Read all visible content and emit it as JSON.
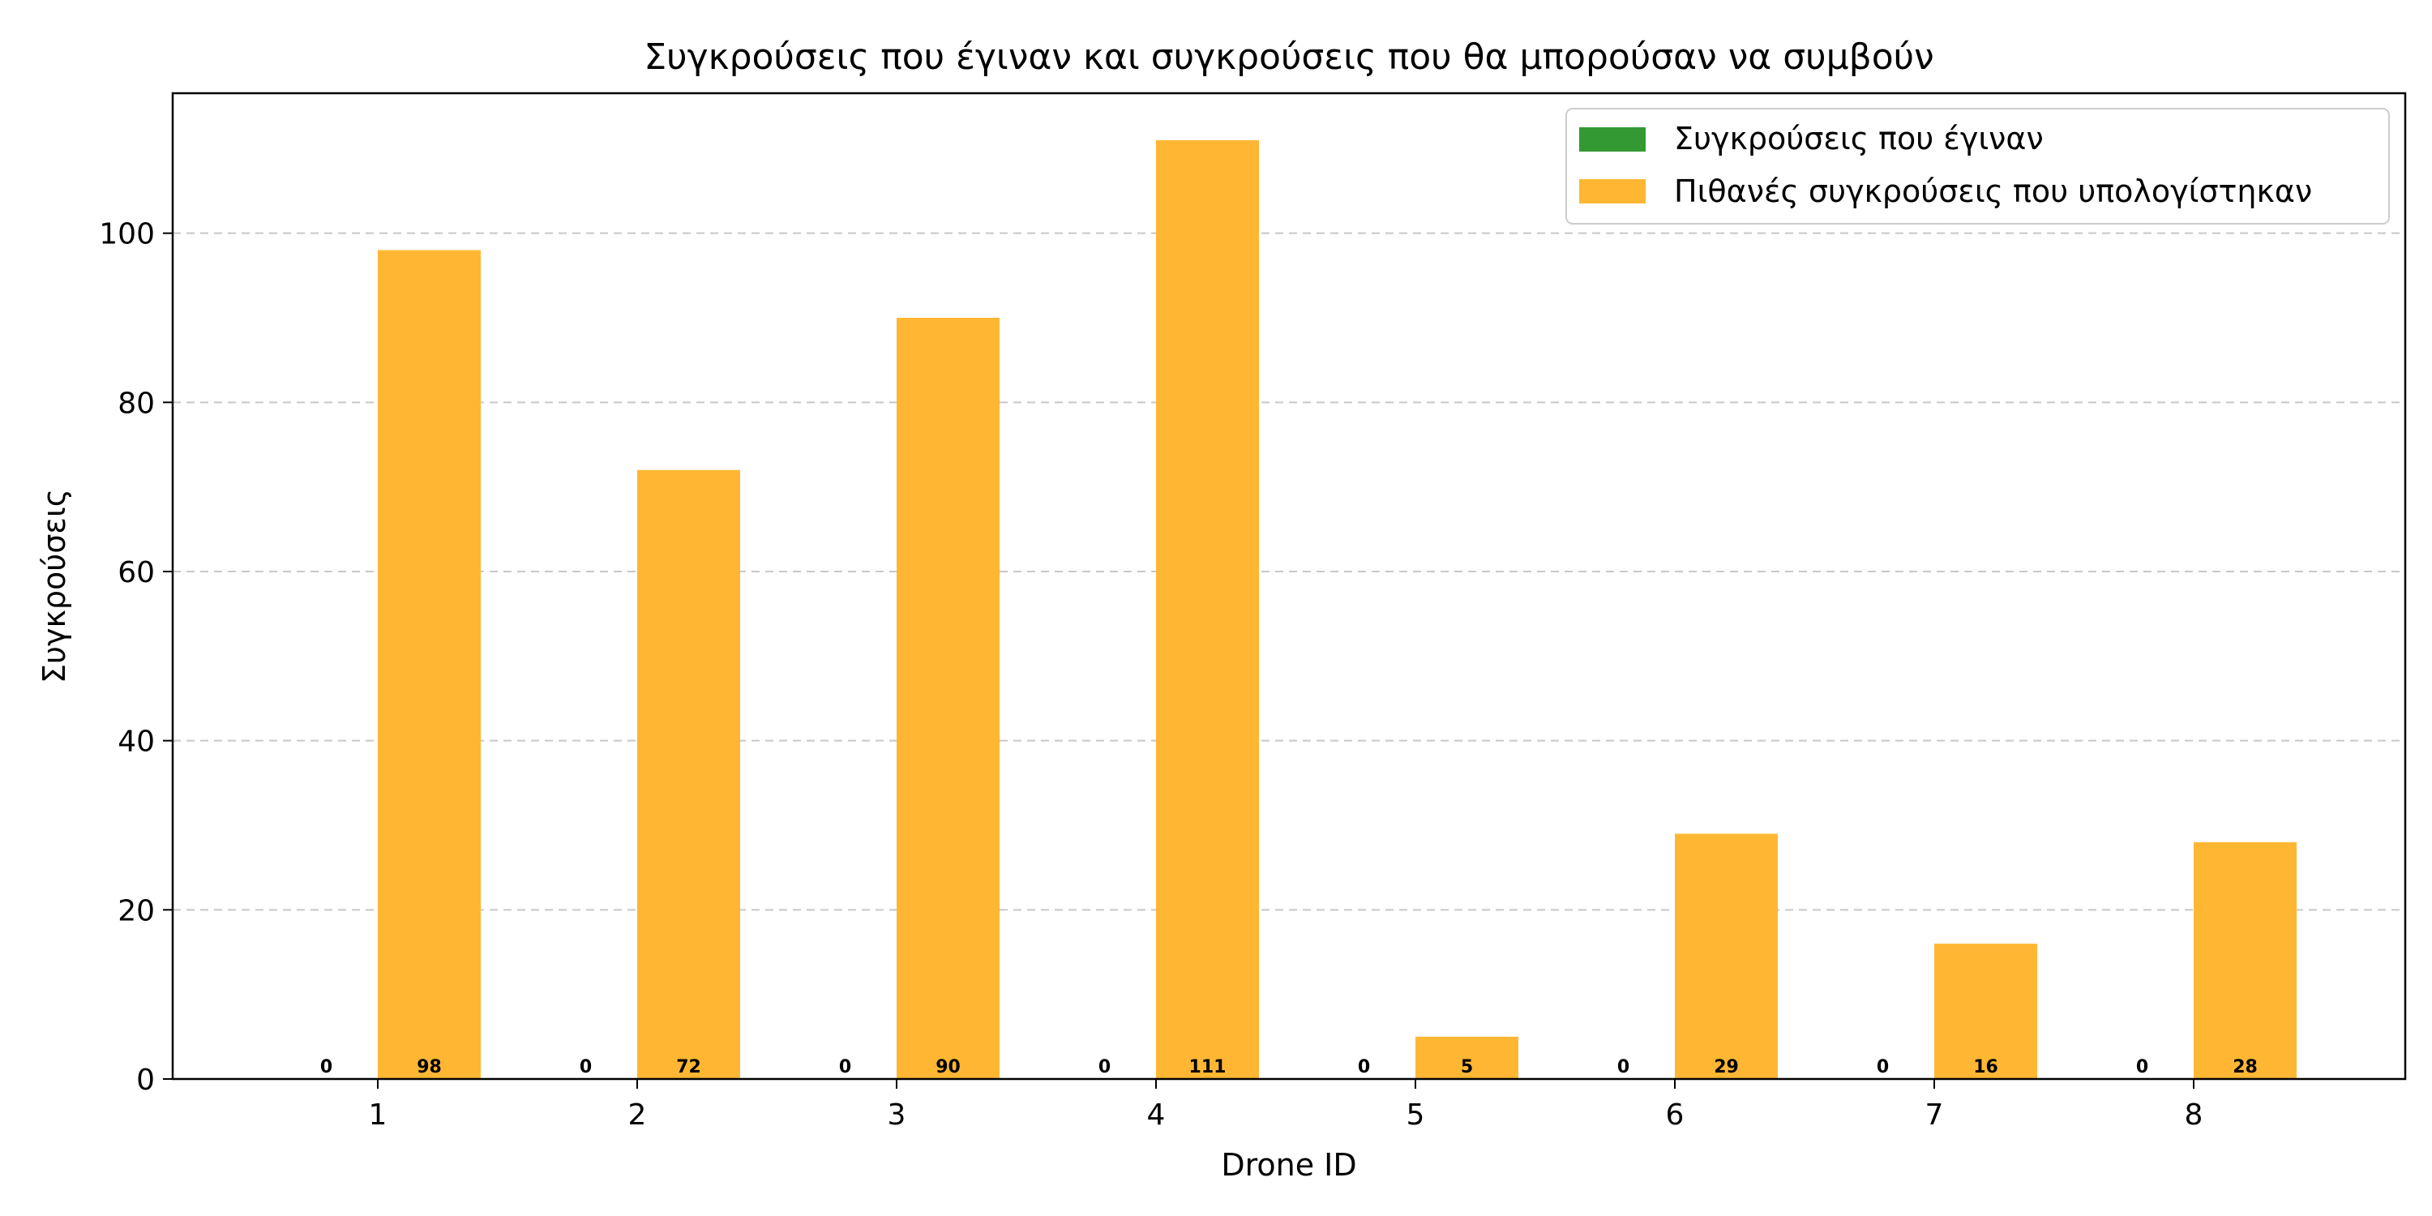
{
  "chart_data": {
    "type": "bar",
    "title": "Συγκρούσεις που έγιναν και συγκρούσεις που θα μπορούσαν να συμβούν",
    "xlabel": "Drone ID",
    "ylabel": "Συγκρούσεις",
    "categories": [
      "1",
      "2",
      "3",
      "4",
      "5",
      "6",
      "7",
      "8"
    ],
    "series": [
      {
        "name": "Συγκρούσεις που έγιναν",
        "color": "#339933",
        "values": [
          0,
          0,
          0,
          0,
          0,
          0,
          0,
          0
        ]
      },
      {
        "name": "Πιθανές συγκρούσεις που υπολογίστηκαν",
        "color": "#FFB733",
        "values": [
          98,
          72,
          90,
          111,
          5,
          29,
          16,
          28
        ]
      }
    ],
    "ylim": [
      0,
      116.55
    ],
    "yticks": [
      0,
      20,
      40,
      60,
      80,
      100
    ],
    "grid": "y-dashed",
    "legend_position": "top-right"
  }
}
